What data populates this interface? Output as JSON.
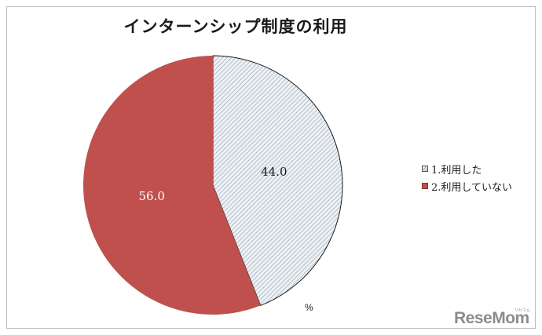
{
  "chart_data": {
    "type": "pie",
    "title": "インターンシップ制度の利用",
    "unit": "%",
    "slices": [
      {
        "label": "1.利用した",
        "value": 44.0,
        "value_label": "44.0",
        "color": "#e6ecf1",
        "pattern": "hatched"
      },
      {
        "label": "2.利用していない",
        "value": 56.0,
        "value_label": "56.0",
        "color": "#c0504d",
        "pattern": "solid"
      }
    ],
    "legend": "right",
    "start_angle": "12 o'clock",
    "direction": "clockwise"
  },
  "watermark": {
    "text": "ReseMom",
    "kana": "リセマム"
  }
}
